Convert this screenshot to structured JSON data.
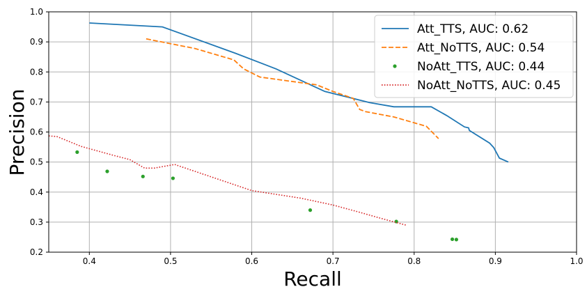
{
  "chart_data": {
    "type": "line",
    "title": "",
    "xlabel": "Recall",
    "ylabel": "Precision",
    "xlim": [
      0.35,
      1.0
    ],
    "ylim": [
      0.2,
      1.0
    ],
    "xticks": [
      "0.4",
      "0.5",
      "0.6",
      "0.7",
      "0.8",
      "0.9",
      "1.0"
    ],
    "yticks": [
      "0.2",
      "0.3",
      "0.4",
      "0.5",
      "0.6",
      "0.7",
      "0.8",
      "0.9",
      "1.0"
    ],
    "grid": true,
    "legend_position": "top-right",
    "series": [
      {
        "name": "Att_TTS, AUC: 0.62",
        "style": "solid",
        "color": "#1f77b4",
        "points": [
          [
            0.4,
            0.963
          ],
          [
            0.49,
            0.95
          ],
          [
            0.58,
            0.862
          ],
          [
            0.63,
            0.81
          ],
          [
            0.69,
            0.735
          ],
          [
            0.745,
            0.698
          ],
          [
            0.775,
            0.684
          ],
          [
            0.821,
            0.684
          ],
          [
            0.84,
            0.655
          ],
          [
            0.862,
            0.617
          ],
          [
            0.867,
            0.614
          ],
          [
            0.868,
            0.605
          ],
          [
            0.893,
            0.563
          ],
          [
            0.898,
            0.548
          ],
          [
            0.905,
            0.513
          ],
          [
            0.916,
            0.5
          ]
        ]
      },
      {
        "name": "Att_NoTTS, AUC: 0.54",
        "style": "dashed",
        "color": "#ff7f0e",
        "points": [
          [
            0.47,
            0.91
          ],
          [
            0.53,
            0.878
          ],
          [
            0.578,
            0.84
          ],
          [
            0.59,
            0.81
          ],
          [
            0.61,
            0.783
          ],
          [
            0.68,
            0.757
          ],
          [
            0.7,
            0.735
          ],
          [
            0.725,
            0.712
          ],
          [
            0.733,
            0.675
          ],
          [
            0.74,
            0.668
          ],
          [
            0.775,
            0.65
          ],
          [
            0.815,
            0.619
          ],
          [
            0.83,
            0.578
          ]
        ]
      },
      {
        "name": "NoAtt_TTS, AUC: 0.44",
        "style": "markers",
        "color": "#2ca02c",
        "points": [
          [
            0.385,
            0.533
          ],
          [
            0.422,
            0.469
          ],
          [
            0.466,
            0.452
          ],
          [
            0.503,
            0.446
          ],
          [
            0.672,
            0.34
          ],
          [
            0.778,
            0.302
          ],
          [
            0.847,
            0.243
          ],
          [
            0.852,
            0.242
          ]
        ]
      },
      {
        "name": "NoAtt_NoTTS, AUC: 0.45",
        "style": "dotted",
        "color": "#d62728",
        "points": [
          [
            0.35,
            0.587
          ],
          [
            0.36,
            0.585
          ],
          [
            0.39,
            0.552
          ],
          [
            0.43,
            0.522
          ],
          [
            0.45,
            0.508
          ],
          [
            0.468,
            0.48
          ],
          [
            0.48,
            0.48
          ],
          [
            0.505,
            0.492
          ],
          [
            0.6,
            0.405
          ],
          [
            0.66,
            0.38
          ],
          [
            0.7,
            0.357
          ],
          [
            0.73,
            0.335
          ],
          [
            0.76,
            0.312
          ],
          [
            0.79,
            0.29
          ]
        ]
      }
    ]
  }
}
